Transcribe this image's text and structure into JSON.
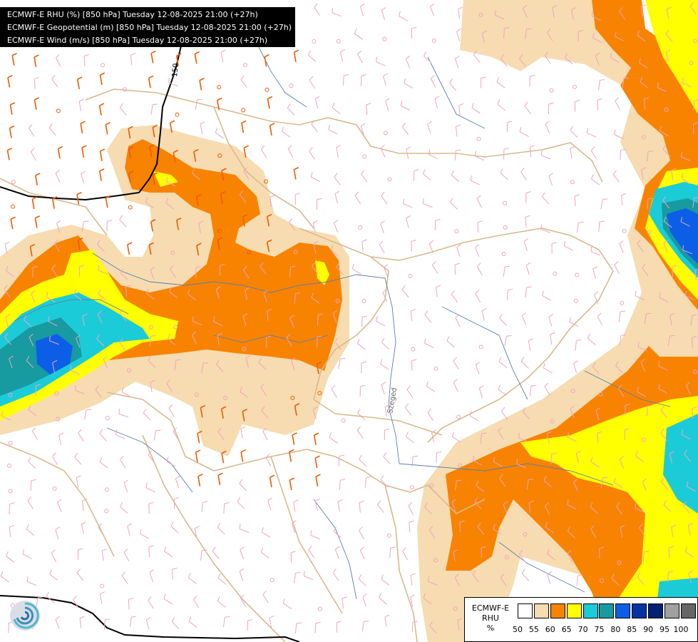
{
  "title_lines": [
    "ECMWF-E RHU (%) [850 hPa] Tuesday 12-08-2025 21:00 (+27h)",
    "ECMWF-E Geopotential (m) [850 hPa] Tuesday 12-08-2025 21:00 (+27h)",
    "ECMWF-E Wind (m/s) [850 hPa] Tuesday 12-08-2025 21:00 (+27h)"
  ],
  "contour_label": "150",
  "city_label": "Szeged",
  "legend": {
    "model": "ECMWF-E",
    "variable": "RHU",
    "unit": "%",
    "ticks": [
      "50",
      "55",
      "60",
      "65",
      "70",
      "75",
      "80",
      "85",
      "90",
      "95",
      "100"
    ],
    "colors": [
      "#ffffff",
      "#f6dcb0",
      "#f88300",
      "#ffff00",
      "#1ccbd8",
      "#179aa0",
      "#0d5ee6",
      "#0633a3",
      "#022173",
      "#a0a0a0",
      "#666666"
    ]
  },
  "colors": {
    "rhu_50": "#f6dcb0",
    "rhu_55": "#f88300",
    "rhu_60": "#ffff00",
    "rhu_65": "#1ccbd8",
    "rhu_70": "#179aa0",
    "rhu_75": "#0d5ee6",
    "border": "#d9b98c",
    "river": "#5a7fa8",
    "wind_weak": "#f2a2c2",
    "wind_strong": "#f05a00",
    "geopotential": "#000000"
  }
}
